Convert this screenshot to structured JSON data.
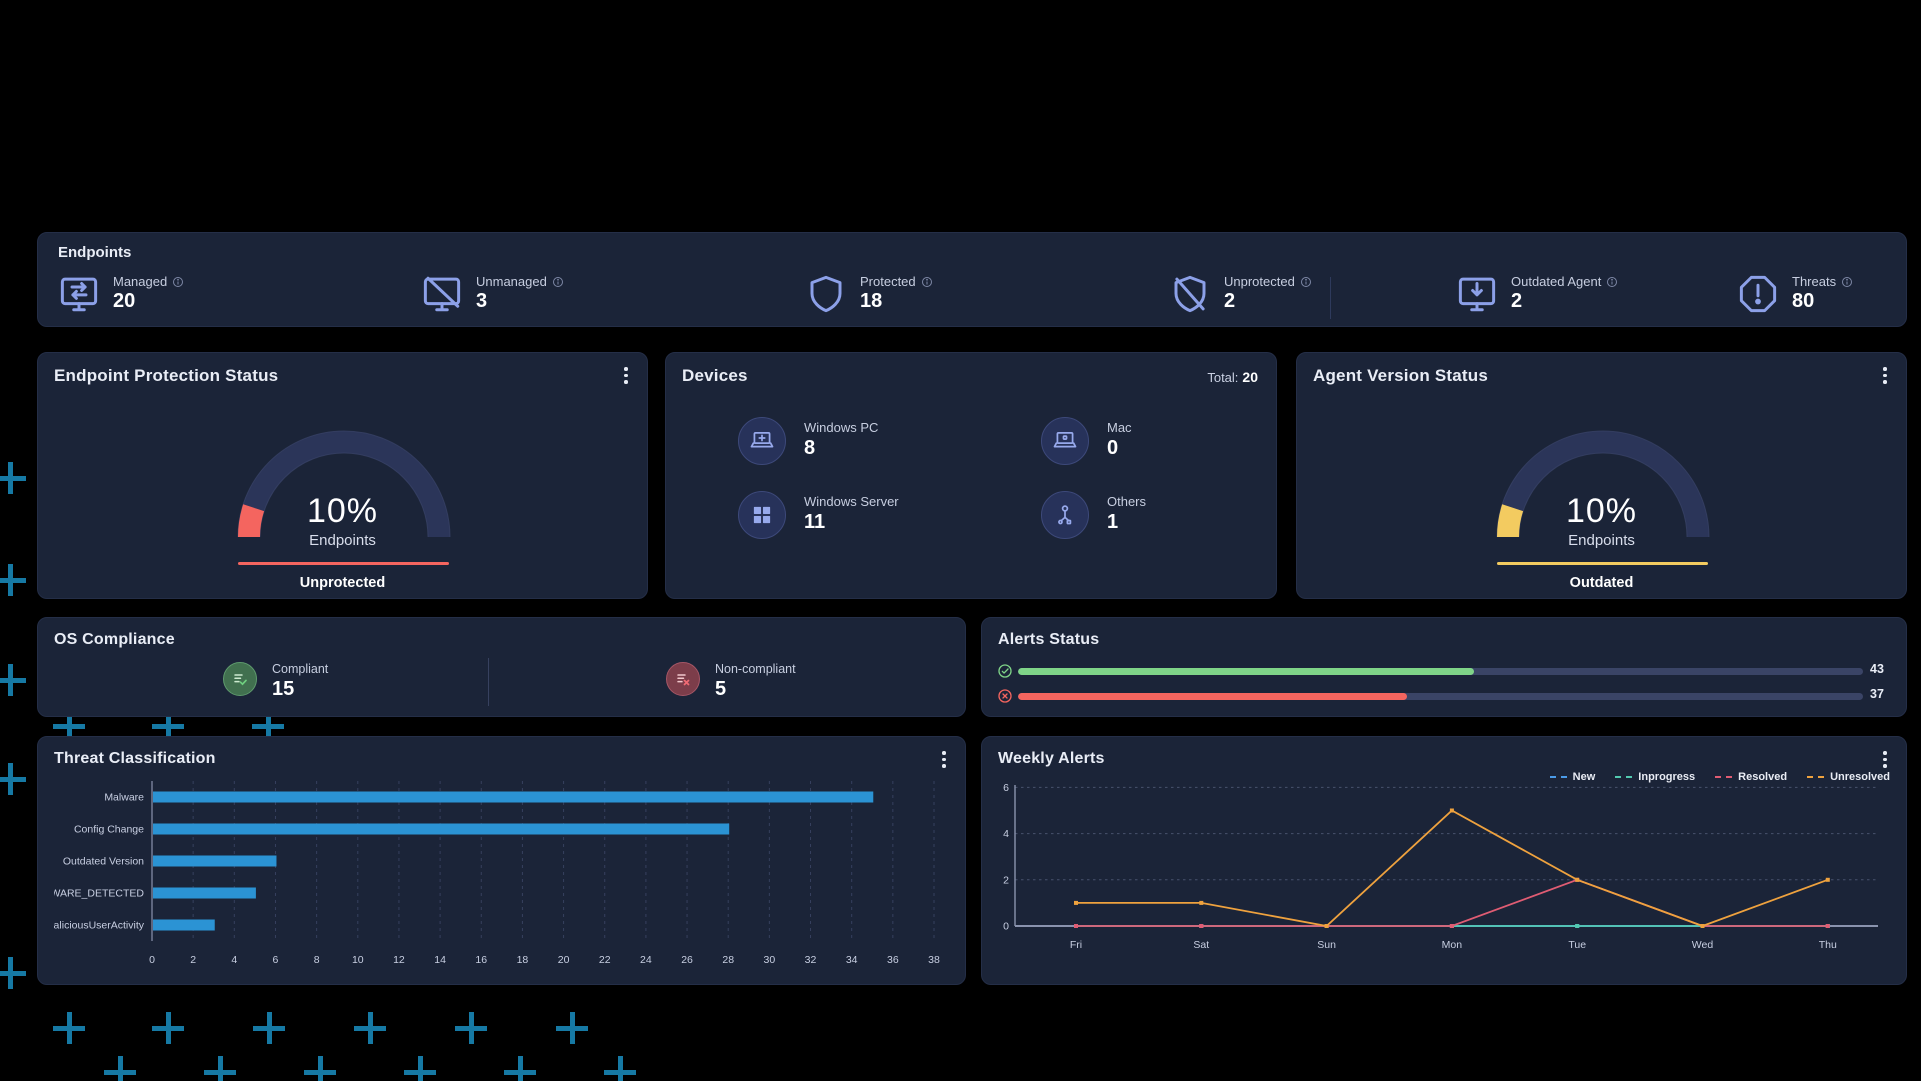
{
  "page": {
    "background_color": "#000000",
    "decor_plus_color": "#1679A4"
  },
  "endpoints_bar": {
    "title": "Endpoints",
    "stats": [
      {
        "label": "Managed",
        "value": "20",
        "icon": "managed-monitor-icon"
      },
      {
        "label": "Unmanaged",
        "value": "3",
        "icon": "unmanaged-monitor-icon"
      },
      {
        "label": "Protected",
        "value": "18",
        "icon": "shield-icon"
      },
      {
        "label": "Unprotected",
        "value": "2",
        "icon": "shield-off-icon"
      },
      {
        "label": "Outdated Agent",
        "value": "2",
        "icon": "monitor-download-icon"
      },
      {
        "label": "Threats",
        "value": "80",
        "icon": "octagon-alert-icon"
      }
    ]
  },
  "cards": {
    "endpoint_protection": {
      "title": "Endpoint Protection Status"
    },
    "devices": {
      "title": "Devices",
      "total_label": "Total:",
      "total_value": "20",
      "items": [
        {
          "label": "Windows PC",
          "value": "8",
          "icon": "windows-laptop-icon"
        },
        {
          "label": "Mac",
          "value": "0",
          "icon": "mac-laptop-icon"
        },
        {
          "label": "Windows Server",
          "value": "11",
          "icon": "windows-logo-icon"
        },
        {
          "label": "Others",
          "value": "1",
          "icon": "other-device-icon"
        }
      ]
    },
    "agent_version": {
      "title": "Agent Version Status"
    },
    "os_compliance": {
      "title": "OS Compliance",
      "compliant": {
        "label": "Compliant",
        "value": "15"
      },
      "noncompliant": {
        "label": "Non-compliant",
        "value": "5"
      }
    },
    "alerts_status": {
      "title": "Alerts Status"
    },
    "threat_classification": {
      "title": "Threat Classification"
    },
    "weekly_alerts": {
      "title": "Weekly Alerts"
    }
  },
  "chart_data": [
    {
      "type": "gauge",
      "title": "Endpoint Protection Status",
      "value_percent": 10,
      "center_value_label": "10%",
      "center_sub_label": "Endpoints",
      "status_label": "Unprotected",
      "color": "#F4655F",
      "track_color": "#2B3559",
      "range": [
        0,
        100
      ]
    },
    {
      "type": "gauge",
      "title": "Agent Version Status",
      "value_percent": 10,
      "center_value_label": "10%",
      "center_sub_label": "Endpoints",
      "status_label": "Outdated",
      "color": "#F3CB60",
      "track_color": "#2B3559",
      "range": [
        0,
        100
      ]
    },
    {
      "type": "bar",
      "orientation": "horizontal",
      "title": "Threat Classification",
      "categories": [
        "Malware",
        "Config Change",
        "Outdated Version",
        "MALWARE_DETECTED",
        "maliciousUserActivity"
      ],
      "values": [
        35,
        28,
        6,
        5,
        3
      ],
      "xlim": [
        0,
        38
      ],
      "xtick_step": 2,
      "bar_color": "#2B93D4",
      "grid": "vertical-dashed",
      "xlabel": "",
      "ylabel": ""
    },
    {
      "type": "line",
      "title": "Weekly Alerts",
      "x": [
        "Fri",
        "Sat",
        "Sun",
        "Mon",
        "Tue",
        "Wed",
        "Thu"
      ],
      "ylim": [
        0,
        6
      ],
      "ytick_step": 2,
      "grid": "horizontal-dashed",
      "legend_position": "top-right",
      "series": [
        {
          "name": "New",
          "color": "#4B9BE8",
          "values": [
            0,
            0,
            0,
            0,
            0,
            0,
            0
          ]
        },
        {
          "name": "Inprogress",
          "color": "#52C9B0",
          "values": [
            0,
            0,
            0,
            0,
            0,
            0,
            0
          ]
        },
        {
          "name": "Resolved",
          "color": "#E05C73",
          "values": [
            0,
            0,
            0,
            0,
            2,
            0,
            0
          ]
        },
        {
          "name": "Unresolved",
          "color": "#EFA23E",
          "values": [
            1,
            1,
            0,
            5,
            2,
            0,
            2
          ]
        }
      ]
    },
    {
      "type": "progress",
      "title": "Alerts Status",
      "rows": [
        {
          "icon": "check-circle-icon",
          "color": "#7FD488",
          "value": "43",
          "fill_fraction": 0.54
        },
        {
          "icon": "x-circle-icon",
          "color": "#F4655F",
          "value": "37",
          "fill_fraction": 0.46
        }
      ]
    }
  ]
}
